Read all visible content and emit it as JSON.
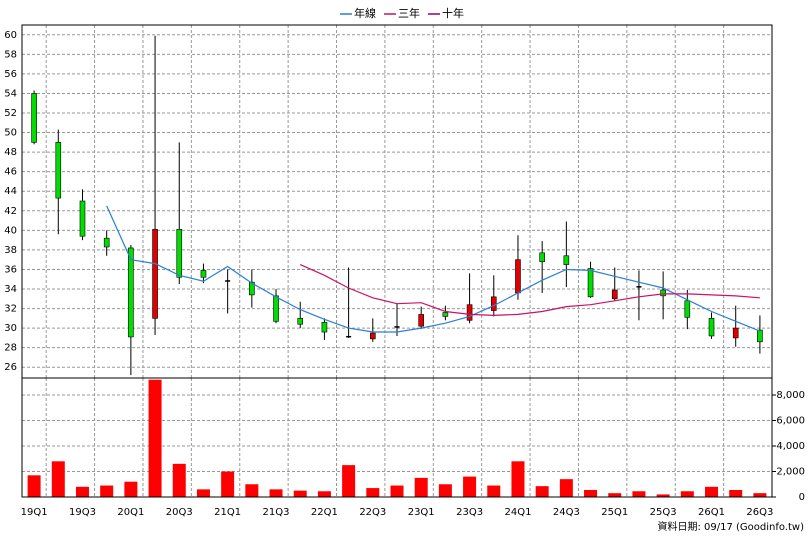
{
  "chart_data": [
    {
      "type": "candlestick",
      "categories": [
        "19Q1",
        null,
        "19Q3",
        null,
        "20Q1",
        null,
        "20Q3",
        null,
        "21Q1",
        null,
        "21Q3",
        null,
        "22Q1",
        null,
        "22Q3",
        null,
        "23Q1",
        null,
        "23Q3",
        null,
        "24Q1",
        null,
        "24Q3",
        null,
        "25Q1",
        null,
        "25Q3",
        null,
        "26Q1",
        null,
        "26Q3"
      ],
      "open": [
        54,
        49,
        43,
        39.2,
        38.2,
        31,
        40.1,
        35.9,
        34.9,
        34.7,
        33.3,
        31,
        30.6,
        29.2,
        28.9,
        30.2,
        30.2,
        31.6,
        30.8,
        31.8,
        33.6,
        37.7,
        37.4,
        36.1,
        33,
        34.3,
        33.9,
        32.8,
        31,
        29,
        29.8
      ],
      "high": [
        54.3,
        50.3,
        44.2,
        40,
        38.5,
        59.9,
        49,
        36.6,
        36,
        36,
        34,
        32.7,
        31,
        36.2,
        31,
        32.5,
        32.2,
        32.3,
        35.6,
        35.4,
        39.5,
        38.9,
        40.9,
        36.8,
        36.2,
        35.9,
        35.8,
        33.9,
        31.6,
        32.3,
        31.3
      ],
      "low": [
        48.8,
        39.6,
        39,
        37.4,
        25.2,
        29.3,
        34.5,
        34.6,
        31.5,
        32.1,
        30.5,
        30,
        28.8,
        29,
        28.6,
        29.2,
        29.9,
        30.8,
        30.5,
        31.2,
        32.9,
        33.6,
        34.2,
        33.1,
        32.8,
        30.8,
        30.9,
        29.9,
        28.9,
        28.1,
        27.4
      ],
      "close": [
        49,
        43.3,
        39.4,
        38.3,
        29.1,
        40.1,
        35.2,
        35.2,
        34.9,
        33.4,
        30.7,
        30.4,
        29.6,
        29.2,
        29.5,
        30.2,
        31.4,
        31.2,
        32.4,
        33.2,
        37,
        36.8,
        36.5,
        33.2,
        33.9,
        34.3,
        33.3,
        31.1,
        29.2,
        30,
        28.6
      ],
      "up_color": "#e00000",
      "down_color": "#00dd00",
      "flat_color": "#000000",
      "series": [
        {
          "name": "年線",
          "color": "#2a7fd4",
          "values": [
            null,
            null,
            null,
            42.5,
            37,
            36.6,
            35.4,
            34.8,
            36.3,
            34.6,
            33.2,
            31.9,
            30.9,
            30,
            29.6,
            29.6,
            30,
            30.5,
            31.2,
            32.3,
            33.6,
            34.9,
            36,
            35.9,
            35.3,
            34.7,
            34.1,
            32.9,
            31.7,
            30.7,
            29.7
          ]
        },
        {
          "name": "三年",
          "color": "#cc1166",
          "values": [
            null,
            null,
            null,
            null,
            null,
            null,
            null,
            null,
            null,
            null,
            null,
            36.5,
            35.4,
            34.1,
            33.1,
            32.5,
            32.6,
            31.7,
            31.4,
            31.3,
            31.4,
            31.7,
            32.2,
            32.4,
            32.8,
            33.2,
            33.5,
            33.5,
            33.4,
            33.3,
            33.1
          ]
        },
        {
          "name": "十年",
          "color": "#990066",
          "values": [
            null,
            null,
            null,
            null,
            null,
            null,
            null,
            null,
            null,
            null,
            null,
            null,
            null,
            null,
            null,
            null,
            null,
            null,
            null,
            null,
            null,
            null,
            null,
            null,
            null,
            null,
            null,
            null,
            null,
            null,
            null
          ]
        }
      ],
      "ylim": [
        24.9,
        61
      ],
      "yticks": [
        26,
        28,
        30,
        32,
        34,
        36,
        38,
        40,
        42,
        44,
        46,
        48,
        50,
        52,
        54,
        56,
        58,
        60
      ],
      "grid": true
    },
    {
      "type": "bar",
      "categories": [
        "19Q1",
        null,
        "19Q3",
        null,
        "20Q1",
        null,
        "20Q3",
        null,
        "21Q1",
        null,
        "21Q3",
        null,
        "22Q1",
        null,
        "22Q3",
        null,
        "23Q1",
        null,
        "23Q3",
        null,
        "24Q1",
        null,
        "24Q3",
        null,
        "25Q1",
        null,
        "25Q3",
        null,
        "26Q1",
        null,
        "26Q3"
      ],
      "values": [
        1700,
        2800,
        800,
        900,
        1200,
        9200,
        2600,
        600,
        2000,
        1000,
        600,
        500,
        450,
        2500,
        700,
        900,
        1500,
        1000,
        1600,
        900,
        2800,
        850,
        1400,
        550,
        300,
        450,
        200,
        450,
        800,
        550,
        300
      ],
      "color": "#ff0000",
      "ylim": [
        0,
        9333
      ],
      "yticks": [
        0,
        {
          "value": 2000,
          "label": "2,000"
        },
        {
          "value": 4000,
          "label": "4,000"
        },
        {
          "value": 6000,
          "label": "6,000"
        },
        {
          "value": 8000,
          "label": "8,000"
        }
      ],
      "grid": true
    }
  ],
  "footer": "資料日期: 09/17 (Goodinfo.tw)"
}
